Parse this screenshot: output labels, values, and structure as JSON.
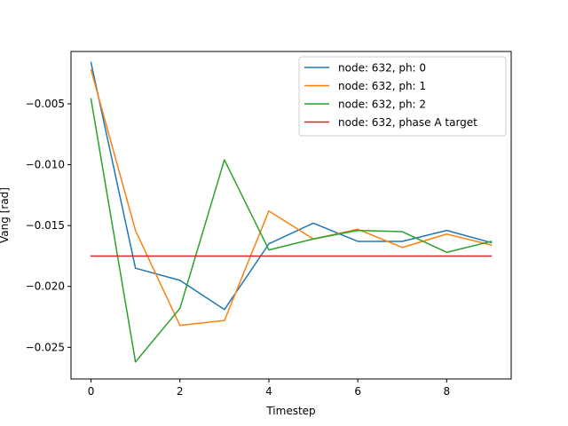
{
  "chart_data": {
    "type": "line",
    "title": "",
    "xlabel": "Timestep",
    "ylabel": "Vang [rad]",
    "xlim": [
      -0.45,
      9.45
    ],
    "ylim": [
      -0.0276,
      -0.0007
    ],
    "xticks": [
      0,
      2,
      4,
      6,
      8
    ],
    "xtick_labels": [
      "0",
      "2",
      "4",
      "6",
      "8"
    ],
    "yticks": [
      -0.025,
      -0.02,
      -0.015,
      -0.01,
      -0.005
    ],
    "ytick_labels": [
      "−0.025",
      "−0.020",
      "−0.015",
      "−0.010",
      "−0.005"
    ],
    "grid": false,
    "legend_position": "top-right",
    "x": [
      0,
      1,
      2,
      3,
      4,
      5,
      6,
      7,
      8,
      9
    ],
    "series": [
      {
        "name": "node: 632, ph: 0",
        "color": "#1f77b4",
        "values": [
          -0.0016,
          -0.0185,
          -0.0195,
          -0.0219,
          -0.0165,
          -0.0148,
          -0.0163,
          -0.0163,
          -0.0154,
          -0.0164
        ]
      },
      {
        "name": "node: 632, ph: 1",
        "color": "#ff7f0e",
        "values": [
          -0.0022,
          -0.0154,
          -0.0232,
          -0.0228,
          -0.0138,
          -0.0161,
          -0.0153,
          -0.0168,
          -0.0157,
          -0.0166
        ]
      },
      {
        "name": "node: 632, ph: 2",
        "color": "#2ca02c",
        "values": [
          -0.0046,
          -0.0262,
          -0.0218,
          -0.0096,
          -0.017,
          -0.0161,
          -0.0154,
          -0.0155,
          -0.0172,
          -0.0163
        ]
      },
      {
        "name": "node: 632, phase A target",
        "color": "#d62728",
        "values": [
          -0.0175,
          -0.0175,
          -0.0175,
          -0.0175,
          -0.0175,
          -0.0175,
          -0.0175,
          -0.0175,
          -0.0175,
          -0.0175
        ]
      }
    ]
  }
}
